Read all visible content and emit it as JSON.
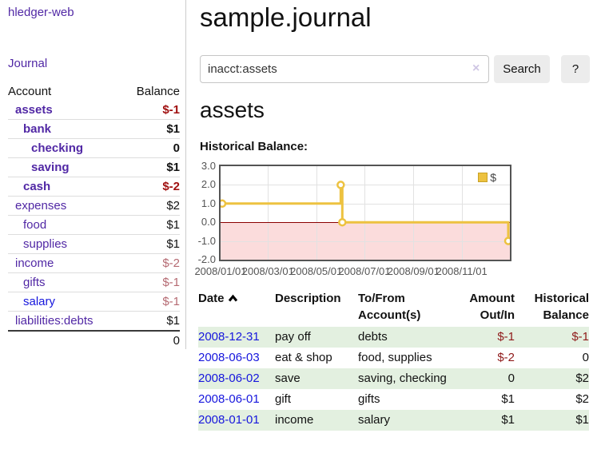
{
  "sidebar": {
    "app_title": "hledger-web",
    "journal_link": "Journal",
    "accounts_table": {
      "headers": {
        "account": "Account",
        "balance": "Balance"
      },
      "rows": [
        {
          "name": "assets",
          "indent": 1,
          "bold": true,
          "balance": "$-1",
          "balance_class": "neg",
          "link_color": "purple"
        },
        {
          "name": "bank",
          "indent": 2,
          "bold": true,
          "balance": "$1",
          "balance_class": "",
          "link_color": "purple"
        },
        {
          "name": "checking",
          "indent": 3,
          "bold": true,
          "balance": "0",
          "balance_class": "",
          "link_color": "purple"
        },
        {
          "name": "saving",
          "indent": 3,
          "bold": true,
          "balance": "$1",
          "balance_class": "",
          "link_color": "purple"
        },
        {
          "name": "cash",
          "indent": 2,
          "bold": true,
          "balance": "$-2",
          "balance_class": "neg",
          "link_color": "purple"
        },
        {
          "name": "expenses",
          "indent": 1,
          "bold": false,
          "balance": "$2",
          "balance_class": "",
          "link_color": "purple"
        },
        {
          "name": "food",
          "indent": 2,
          "bold": false,
          "balance": "$1",
          "balance_class": "",
          "link_color": "purple"
        },
        {
          "name": "supplies",
          "indent": 2,
          "bold": false,
          "balance": "$1",
          "balance_class": "",
          "link_color": "purple"
        },
        {
          "name": "income",
          "indent": 1,
          "bold": false,
          "balance": "$-2",
          "balance_class": "softneg",
          "link_color": "purple"
        },
        {
          "name": "gifts",
          "indent": 2,
          "bold": false,
          "balance": "$-1",
          "balance_class": "softneg",
          "link_color": "purple"
        },
        {
          "name": "salary",
          "indent": 2,
          "bold": false,
          "balance": "$-1",
          "balance_class": "softneg",
          "link_color": "blue"
        },
        {
          "name": "liabilities:debts",
          "indent": 1,
          "bold": false,
          "balance": "$1",
          "balance_class": "",
          "link_color": "purple"
        }
      ],
      "total": "0"
    }
  },
  "header": {
    "title": "sample.journal"
  },
  "search": {
    "value": "inacct:assets",
    "search_label": "Search",
    "help_label": "?"
  },
  "icons": {
    "clear_search": "×",
    "sort_ascending": "chevron-up"
  },
  "main": {
    "account_heading": "assets",
    "chart_title": "Historical Balance:"
  },
  "chart_data": {
    "type": "line",
    "title": "Historical Balance:",
    "steps": true,
    "x_start": "2008-01-01",
    "x_end": "2009-01-01",
    "x_ticks": [
      {
        "label": "2008/01/01",
        "date": "2008-01-01"
      },
      {
        "label": "2008/03/01",
        "date": "2008-03-01"
      },
      {
        "label": "2008/05/01",
        "date": "2008-05-01"
      },
      {
        "label": "2008/07/01",
        "date": "2008-07-01"
      },
      {
        "label": "2008/09/01",
        "date": "2008-09-01"
      },
      {
        "label": "2008/11/01",
        "date": "2008-11-01"
      }
    ],
    "y_ticks": [
      {
        "label": "3.0",
        "value": 3
      },
      {
        "label": "2.0",
        "value": 2
      },
      {
        "label": "1.0",
        "value": 1
      },
      {
        "label": "0.0",
        "value": 0
      },
      {
        "label": "-1.0",
        "value": -1
      },
      {
        "label": "-2.0",
        "value": -2
      }
    ],
    "ylim": [
      -2,
      3
    ],
    "grid": true,
    "legend_position": "top-right",
    "series": [
      {
        "name": "$",
        "color": "#EDC240",
        "points": [
          {
            "date": "2008-01-01",
            "value": 1
          },
          {
            "date": "2008-06-01",
            "value": 2
          },
          {
            "date": "2008-06-03",
            "value": 0
          },
          {
            "date": "2008-12-31",
            "value": -1
          }
        ]
      }
    ],
    "negative_region_color": "#fbdcdc",
    "zero_line_color": "#8b0000"
  },
  "register": {
    "headers": [
      {
        "line1": "Date",
        "line2": "",
        "align": "left"
      },
      {
        "line1": "Description",
        "line2": "",
        "align": "left"
      },
      {
        "line1": "To/From",
        "line2": "Account(s)",
        "align": "left"
      },
      {
        "line1": "Amount",
        "line2": "Out/In",
        "align": "right"
      },
      {
        "line1": "Historical",
        "line2": "Balance",
        "align": "right"
      }
    ],
    "rows": [
      {
        "date": "2008-12-31",
        "description": "pay off",
        "accounts": "debts",
        "amount": "$-1",
        "amount_negative": true,
        "balance": "$-1",
        "balance_negative": true
      },
      {
        "date": "2008-06-03",
        "description": "eat & shop",
        "accounts": "food, supplies",
        "amount": "$-2",
        "amount_negative": true,
        "balance": "0",
        "balance_negative": false
      },
      {
        "date": "2008-06-02",
        "description": "save",
        "accounts": "saving, checking",
        "amount": "0",
        "amount_negative": false,
        "balance": "$2",
        "balance_negative": false
      },
      {
        "date": "2008-06-01",
        "description": "gift",
        "accounts": "gifts",
        "amount": "$1",
        "amount_negative": false,
        "balance": "$2",
        "balance_negative": false
      },
      {
        "date": "2008-01-01",
        "description": "income",
        "accounts": "salary",
        "amount": "$1",
        "amount_negative": false,
        "balance": "$1",
        "balance_negative": false
      }
    ]
  },
  "colors": {
    "link_purple": "#5128a5",
    "link_blue": "#1616dd",
    "negative_strong": "#a01010",
    "negative_soft": "#b56a72",
    "row_green": "#e3f0e0",
    "series_gold": "#EDC240",
    "chart_border": "#545454"
  }
}
